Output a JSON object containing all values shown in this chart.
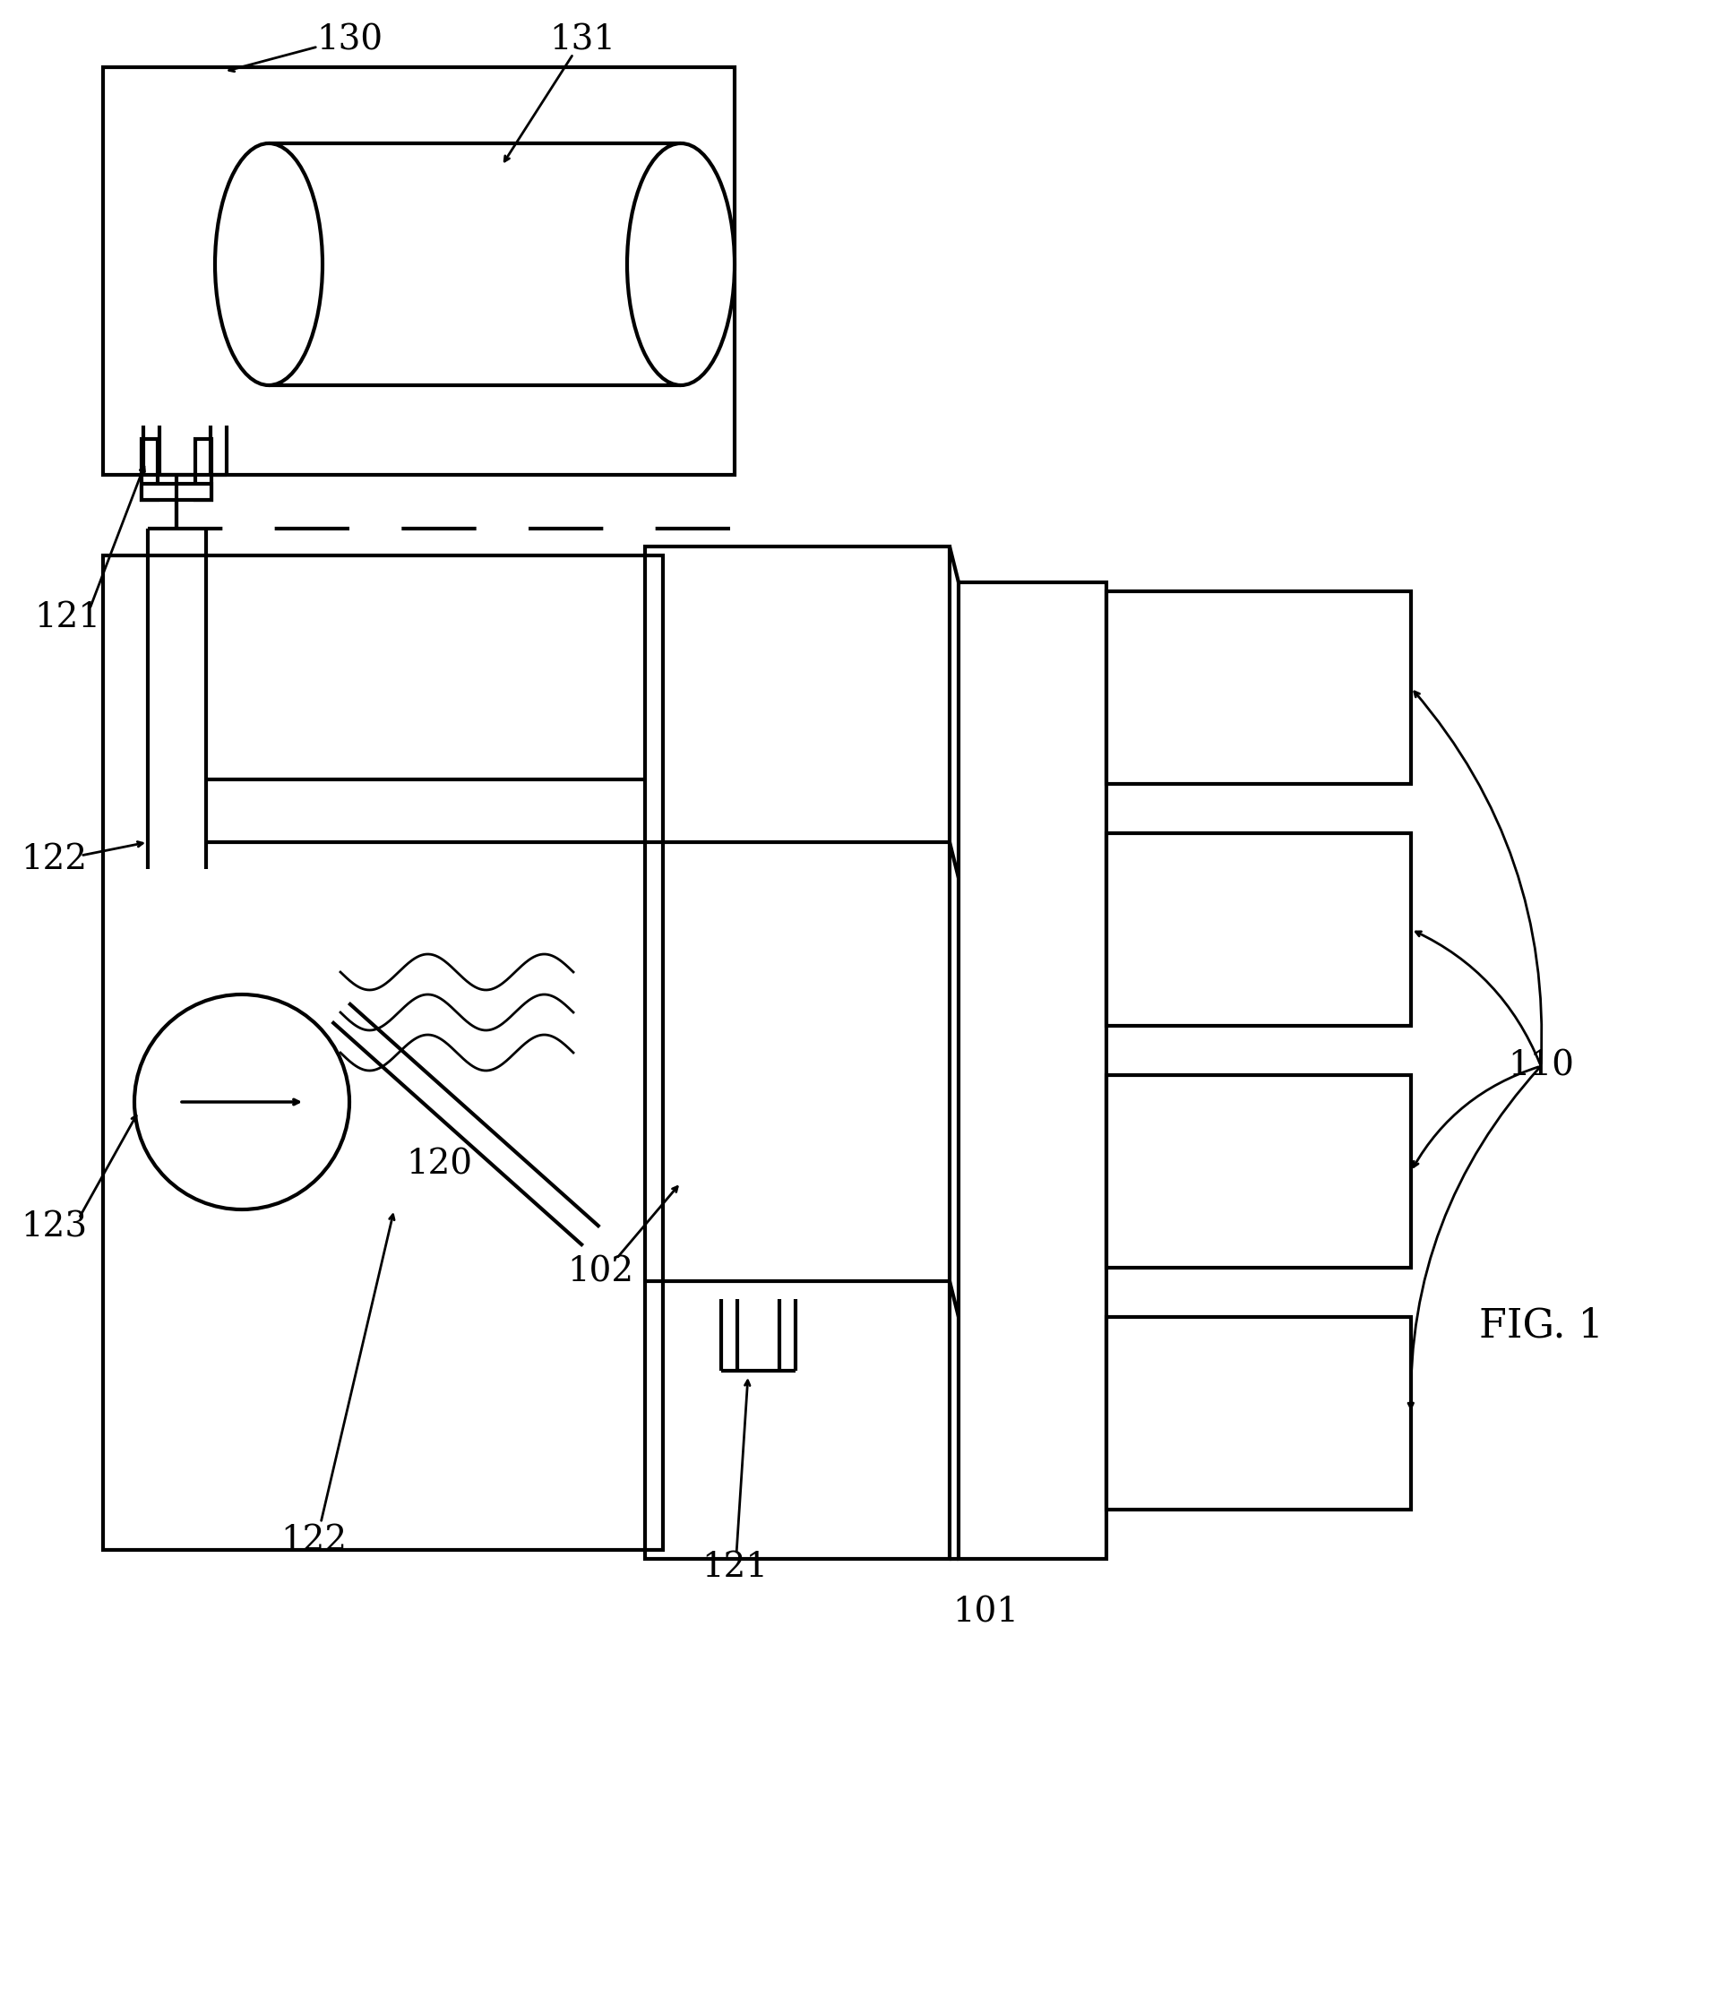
{
  "background_color": "#ffffff",
  "line_color": "#000000",
  "fig_label": "FIG. 1",
  "label_fontsize": 28
}
